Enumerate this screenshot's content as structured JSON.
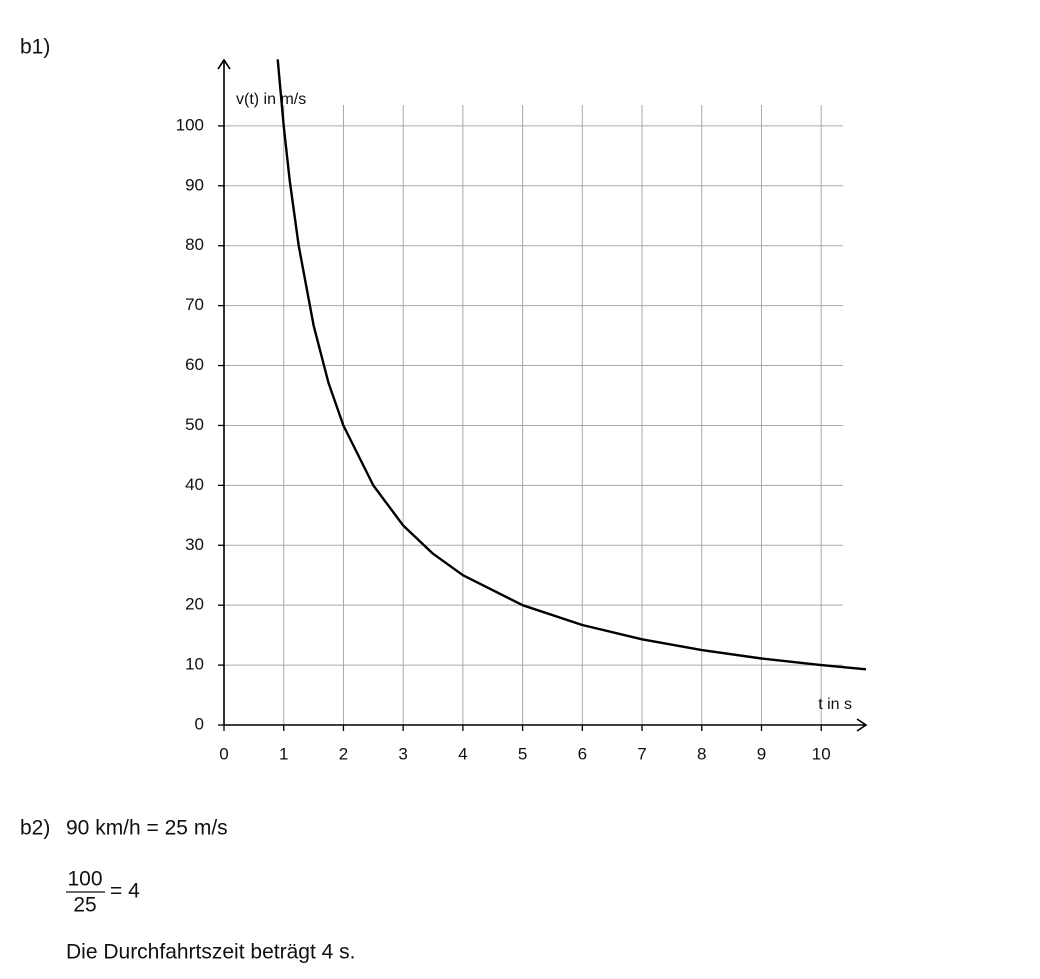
{
  "labels": {
    "part1": "b1)",
    "part2": "b2)"
  },
  "chart_data": {
    "type": "line",
    "ylabel": "v(t) in m/s",
    "xlabel": "t in s",
    "x": [
      0.9,
      1,
      1.1,
      1.25,
      1.5,
      1.75,
      2,
      2.5,
      3,
      3.5,
      4,
      5,
      6,
      7,
      8,
      9,
      10,
      10.75
    ],
    "values": [
      111.1,
      100,
      90.9,
      80,
      66.7,
      57.1,
      50,
      40,
      33.3,
      28.6,
      25,
      20,
      16.7,
      14.3,
      12.5,
      11.1,
      10,
      9.3
    ],
    "color": "#000000",
    "xlim": [
      0,
      10.75
    ],
    "ylim": [
      0,
      111
    ],
    "xticks": [
      0,
      1,
      2,
      3,
      4,
      5,
      6,
      7,
      8,
      9,
      10
    ],
    "yticks": [
      0,
      10,
      20,
      30,
      40,
      50,
      60,
      70,
      80,
      90,
      100
    ],
    "grid": true
  },
  "solution": {
    "line1": "90 km/h = 25 m/s",
    "numerator": "100",
    "denominator": "25",
    "result": "= 4",
    "sentence": "Die Durchfahrtszeit beträgt 4 s."
  }
}
